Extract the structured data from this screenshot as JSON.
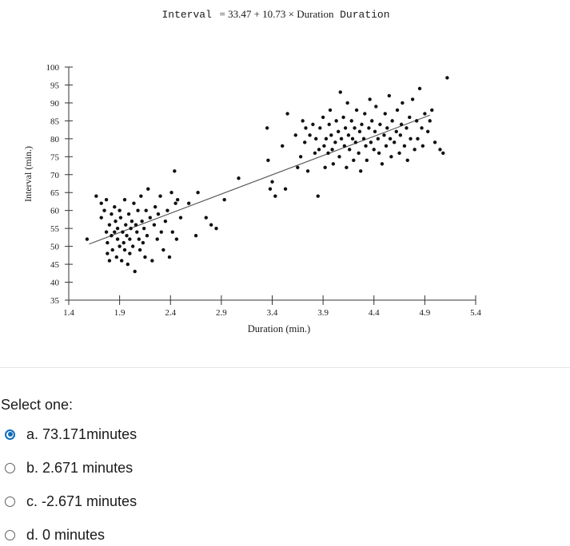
{
  "chart_data": {
    "type": "scatter",
    "title_prefix": "Interval",
    "title_equation": "= 33.47 + 10.73 × Duration",
    "title_suffix": "Duration",
    "xlabel": "Duration (min.)",
    "ylabel": "Interval (min.)",
    "xlim": [
      1.4,
      5.4
    ],
    "ylim": [
      35,
      100
    ],
    "xticks": [
      1.4,
      1.9,
      2.4,
      2.9,
      3.4,
      3.9,
      4.4,
      4.9,
      5.4
    ],
    "xtick_labels": [
      "1.4",
      "1.9",
      "2.4",
      "2.9",
      "3.4",
      "3.9",
      "4.4",
      "4.9",
      "5.4"
    ],
    "yticks": [
      35,
      40,
      45,
      50,
      55,
      60,
      65,
      70,
      75,
      80,
      85,
      90,
      95,
      100
    ],
    "ytick_labels": [
      "35",
      "40",
      "45",
      "50",
      "55",
      "60",
      "65",
      "70",
      "75",
      "80",
      "85",
      "90",
      "95",
      "100"
    ],
    "regression": {
      "intercept": 33.47,
      "slope": 10.73,
      "x_range": [
        1.6,
        4.95
      ]
    },
    "points": [
      [
        1.58,
        52
      ],
      [
        1.67,
        64
      ],
      [
        1.72,
        62
      ],
      [
        1.72,
        58
      ],
      [
        1.75,
        60
      ],
      [
        1.77,
        54
      ],
      [
        1.77,
        63
      ],
      [
        1.78,
        51
      ],
      [
        1.78,
        48
      ],
      [
        1.8,
        56
      ],
      [
        1.8,
        46
      ],
      [
        1.82,
        59
      ],
      [
        1.82,
        53
      ],
      [
        1.83,
        49
      ],
      [
        1.85,
        61
      ],
      [
        1.85,
        54
      ],
      [
        1.86,
        57
      ],
      [
        1.87,
        47
      ],
      [
        1.88,
        52
      ],
      [
        1.88,
        55
      ],
      [
        1.9,
        60
      ],
      [
        1.9,
        50
      ],
      [
        1.91,
        58
      ],
      [
        1.92,
        46
      ],
      [
        1.93,
        54
      ],
      [
        1.94,
        51
      ],
      [
        1.95,
        63
      ],
      [
        1.95,
        49
      ],
      [
        1.96,
        56
      ],
      [
        1.97,
        53
      ],
      [
        1.98,
        45
      ],
      [
        1.99,
        59
      ],
      [
        2.0,
        52
      ],
      [
        2.0,
        48
      ],
      [
        2.01,
        55
      ],
      [
        2.02,
        57
      ],
      [
        2.03,
        50
      ],
      [
        2.04,
        62
      ],
      [
        2.05,
        43
      ],
      [
        2.06,
        56
      ],
      [
        2.07,
        54
      ],
      [
        2.08,
        60
      ],
      [
        2.09,
        52
      ],
      [
        2.1,
        49
      ],
      [
        2.11,
        64
      ],
      [
        2.12,
        57
      ],
      [
        2.13,
        51
      ],
      [
        2.14,
        55
      ],
      [
        2.15,
        47
      ],
      [
        2.16,
        60
      ],
      [
        2.17,
        53
      ],
      [
        2.18,
        66
      ],
      [
        2.2,
        58
      ],
      [
        2.22,
        46
      ],
      [
        2.24,
        56
      ],
      [
        2.25,
        61
      ],
      [
        2.27,
        52
      ],
      [
        2.28,
        59
      ],
      [
        2.3,
        64
      ],
      [
        2.31,
        54
      ],
      [
        2.33,
        49
      ],
      [
        2.35,
        57
      ],
      [
        2.37,
        60
      ],
      [
        2.39,
        47
      ],
      [
        2.41,
        65
      ],
      [
        2.42,
        54
      ],
      [
        2.44,
        71
      ],
      [
        2.45,
        62
      ],
      [
        2.46,
        52
      ],
      [
        2.47,
        63
      ],
      [
        2.5,
        58
      ],
      [
        2.58,
        62
      ],
      [
        2.65,
        53
      ],
      [
        2.67,
        65
      ],
      [
        2.75,
        58
      ],
      [
        2.8,
        56
      ],
      [
        2.85,
        55
      ],
      [
        2.93,
        63
      ],
      [
        3.07,
        69
      ],
      [
        3.35,
        83
      ],
      [
        3.36,
        74
      ],
      [
        3.38,
        66
      ],
      [
        3.4,
        68
      ],
      [
        3.43,
        64
      ],
      [
        3.5,
        78
      ],
      [
        3.53,
        66
      ],
      [
        3.55,
        87
      ],
      [
        3.63,
        81
      ],
      [
        3.65,
        72
      ],
      [
        3.68,
        75
      ],
      [
        3.7,
        85
      ],
      [
        3.72,
        79
      ],
      [
        3.73,
        83
      ],
      [
        3.75,
        71
      ],
      [
        3.77,
        81
      ],
      [
        3.8,
        84
      ],
      [
        3.82,
        76
      ],
      [
        3.83,
        80
      ],
      [
        3.85,
        64
      ],
      [
        3.86,
        77
      ],
      [
        3.87,
        83
      ],
      [
        3.9,
        86
      ],
      [
        3.91,
        78
      ],
      [
        3.92,
        72
      ],
      [
        3.93,
        80
      ],
      [
        3.95,
        76
      ],
      [
        3.96,
        84
      ],
      [
        3.97,
        88
      ],
      [
        3.98,
        81
      ],
      [
        3.99,
        77
      ],
      [
        4.0,
        73
      ],
      [
        4.02,
        79
      ],
      [
        4.03,
        85
      ],
      [
        4.05,
        82
      ],
      [
        4.06,
        75
      ],
      [
        4.07,
        93
      ],
      [
        4.08,
        80
      ],
      [
        4.1,
        86
      ],
      [
        4.11,
        78
      ],
      [
        4.12,
        83
      ],
      [
        4.13,
        72
      ],
      [
        4.14,
        90
      ],
      [
        4.15,
        81
      ],
      [
        4.16,
        77
      ],
      [
        4.18,
        85
      ],
      [
        4.19,
        80
      ],
      [
        4.2,
        74
      ],
      [
        4.21,
        83
      ],
      [
        4.22,
        79
      ],
      [
        4.23,
        88
      ],
      [
        4.25,
        76
      ],
      [
        4.26,
        82
      ],
      [
        4.27,
        71
      ],
      [
        4.28,
        84
      ],
      [
        4.3,
        80
      ],
      [
        4.31,
        87
      ],
      [
        4.32,
        78
      ],
      [
        4.33,
        74
      ],
      [
        4.35,
        83
      ],
      [
        4.36,
        91
      ],
      [
        4.37,
        79
      ],
      [
        4.38,
        85
      ],
      [
        4.4,
        77
      ],
      [
        4.41,
        82
      ],
      [
        4.42,
        89
      ],
      [
        4.44,
        80
      ],
      [
        4.45,
        76
      ],
      [
        4.46,
        84
      ],
      [
        4.48,
        73
      ],
      [
        4.5,
        81
      ],
      [
        4.51,
        87
      ],
      [
        4.52,
        78
      ],
      [
        4.53,
        83
      ],
      [
        4.55,
        92
      ],
      [
        4.56,
        80
      ],
      [
        4.57,
        75
      ],
      [
        4.58,
        85
      ],
      [
        4.6,
        79
      ],
      [
        4.62,
        82
      ],
      [
        4.63,
        88
      ],
      [
        4.65,
        76
      ],
      [
        4.66,
        81
      ],
      [
        4.67,
        84
      ],
      [
        4.68,
        90
      ],
      [
        4.7,
        78
      ],
      [
        4.72,
        83
      ],
      [
        4.73,
        74
      ],
      [
        4.75,
        86
      ],
      [
        4.76,
        80
      ],
      [
        4.78,
        91
      ],
      [
        4.8,
        77
      ],
      [
        4.82,
        85
      ],
      [
        4.83,
        80
      ],
      [
        4.85,
        94
      ],
      [
        4.87,
        83
      ],
      [
        4.88,
        78
      ],
      [
        4.9,
        87
      ],
      [
        4.93,
        82
      ],
      [
        4.95,
        85
      ],
      [
        4.97,
        88
      ],
      [
        5.0,
        79
      ],
      [
        5.05,
        77
      ],
      [
        5.08,
        76
      ],
      [
        5.12,
        97
      ]
    ]
  },
  "question": {
    "prompt": "Select one:",
    "options": [
      {
        "label": "a. 73.171minutes",
        "selected": true
      },
      {
        "label": "b. 2.671 minutes",
        "selected": false
      },
      {
        "label": "c. -2.671 minutes",
        "selected": false
      },
      {
        "label": "d. 0 minutes",
        "selected": false
      }
    ]
  }
}
